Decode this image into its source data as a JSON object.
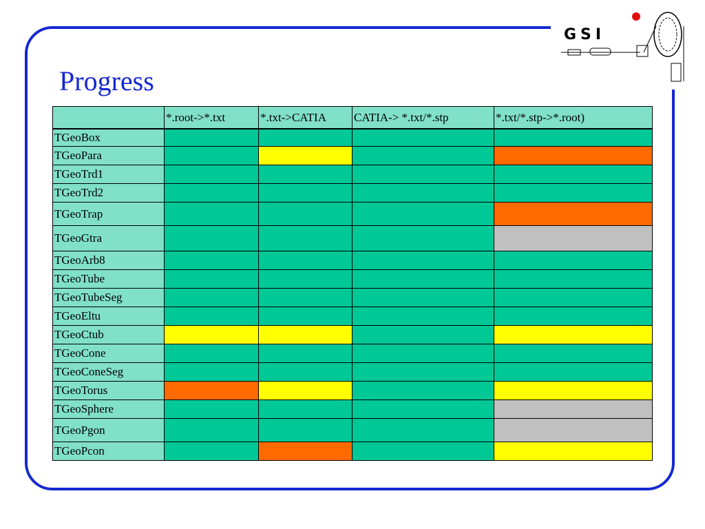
{
  "slide": {
    "title": "Progress"
  },
  "logo": {
    "text": "GSI"
  },
  "colors": {
    "frame": "#1428d2",
    "title": "#1428d2",
    "header_bg": "#80e0c8",
    "done": "#00c896",
    "in_progress": "#ffff00",
    "problem": "#ff6a00",
    "not_applicable": "#c0c0c0"
  },
  "table": {
    "headers": [
      "",
      "*.root->*.txt",
      "*.txt->CATIA",
      "CATIA-> *.txt/*.stp",
      "*.txt/*.stp->*.root)"
    ],
    "rows": [
      {
        "name": "TGeoBox",
        "status": [
          "green",
          "green",
          "green",
          "green"
        ]
      },
      {
        "name": "TGeoPara",
        "status": [
          "green",
          "yellow",
          "green",
          "orange"
        ]
      },
      {
        "name": "TGeoTrd1",
        "status": [
          "green",
          "green",
          "green",
          "green"
        ]
      },
      {
        "name": "TGeoTrd2",
        "status": [
          "green",
          "green",
          "green",
          "green"
        ]
      },
      {
        "name": "TGeoTrap",
        "status": [
          "green",
          "green",
          "green",
          "orange"
        ]
      },
      {
        "name": "TGeoGtra",
        "status": [
          "green",
          "green",
          "green",
          "gray"
        ]
      },
      {
        "name": "TGeoArb8",
        "status": [
          "green",
          "green",
          "green",
          "green"
        ]
      },
      {
        "name": "TGeoTube",
        "status": [
          "green",
          "green",
          "green",
          "green"
        ]
      },
      {
        "name": "TGeoTubeSeg",
        "status": [
          "green",
          "green",
          "green",
          "green"
        ]
      },
      {
        "name": "TGeoEltu",
        "status": [
          "green",
          "green",
          "green",
          "green"
        ]
      },
      {
        "name": "TGeoCtub",
        "status": [
          "yellow",
          "yellow",
          "green",
          "yellow"
        ]
      },
      {
        "name": "TGeoCone",
        "status": [
          "green",
          "green",
          "green",
          "green"
        ]
      },
      {
        "name": "TGeoConeSeg",
        "status": [
          "green",
          "green",
          "green",
          "green"
        ]
      },
      {
        "name": "TGeoTorus",
        "status": [
          "orange",
          "yellow",
          "green",
          "yellow"
        ]
      },
      {
        "name": "TGeoSphere",
        "status": [
          "green",
          "green",
          "green",
          "gray"
        ]
      },
      {
        "name": "TGeoPgon",
        "status": [
          "green",
          "green",
          "green",
          "gray"
        ]
      },
      {
        "name": "TGeoPcon",
        "status": [
          "green",
          "orange",
          "green",
          "yellow"
        ]
      }
    ]
  }
}
